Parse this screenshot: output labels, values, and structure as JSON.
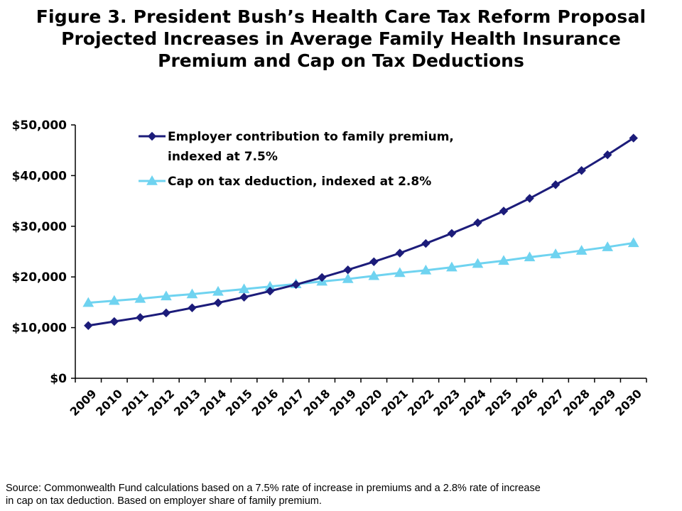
{
  "title_lines": [
    "Figure 3. President Bush’s Health Care Tax Reform Proposal",
    "Projected Increases in Average Family Health Insurance",
    "Premium and Cap on Tax Deductions"
  ],
  "source_lines": [
    "Source: Commonwealth Fund calculations based on a 7.5% rate of increase in premiums and a 2.8% rate of increase",
    "in cap on tax deduction. Based on employer share of family premium."
  ],
  "chart_data": {
    "type": "line",
    "title": "",
    "xlabel": "",
    "ylabel": "",
    "ylim": [
      0,
      50000
    ],
    "y_ticks": [
      {
        "value": 0,
        "label": "$0"
      },
      {
        "value": 10000,
        "label": "$10,000"
      },
      {
        "value": 20000,
        "label": "$20,000"
      },
      {
        "value": 30000,
        "label": "$30,000"
      },
      {
        "value": 40000,
        "label": "$40,000"
      },
      {
        "value": 50000,
        "label": "$50,000"
      }
    ],
    "grid": false,
    "legend_placement": "top-left",
    "x": [
      "2009",
      "2010",
      "2011",
      "2012",
      "2013",
      "2014",
      "2015",
      "2016",
      "2017",
      "2018",
      "2019",
      "2020",
      "2021",
      "2022",
      "2023",
      "2024",
      "2025",
      "2026",
      "2027",
      "2028",
      "2029",
      "2030"
    ],
    "series": [
      {
        "name": "Employer contribution to family premium, indexed at 7.5%",
        "legend_lines": [
          "Employer contribution to family premium,",
          "indexed at 7.5%"
        ],
        "color": "#1c1c7a",
        "marker": "diamond",
        "values": [
          10400,
          11200,
          12000,
          12900,
          13900,
          14900,
          16000,
          17200,
          18500,
          19900,
          21400,
          23000,
          24700,
          26600,
          28600,
          30700,
          33000,
          35500,
          38200,
          41000,
          44100,
          47400
        ]
      },
      {
        "name": "Cap on tax deduction, indexed at 2.8%",
        "legend_lines": [
          "Cap on tax deduction, indexed at 2.8%"
        ],
        "color": "#6fd3f0",
        "marker": "triangle",
        "values": [
          14900,
          15300,
          15700,
          16200,
          16600,
          17100,
          17600,
          18100,
          18600,
          19100,
          19600,
          20200,
          20800,
          21300,
          21900,
          22600,
          23200,
          23900,
          24500,
          25200,
          25900,
          26700
        ]
      }
    ]
  }
}
